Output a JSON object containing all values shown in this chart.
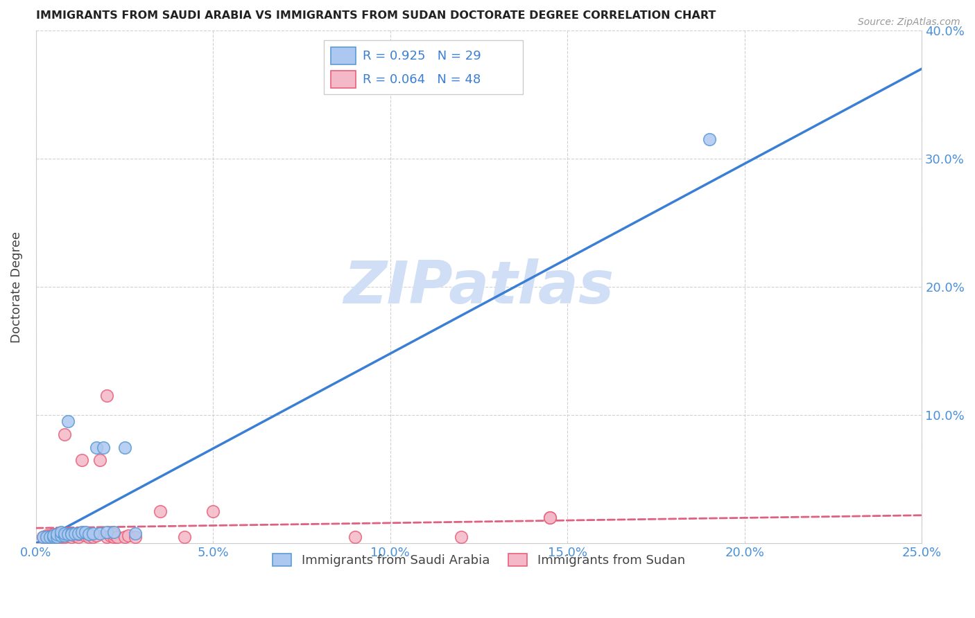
{
  "title": "IMMIGRANTS FROM SAUDI ARABIA VS IMMIGRANTS FROM SUDAN DOCTORATE DEGREE CORRELATION CHART",
  "source": "Source: ZipAtlas.com",
  "tick_color": "#4a90d9",
  "ylabel": "Doctorate Degree",
  "xlim": [
    0.0,
    0.25
  ],
  "ylim": [
    0.0,
    0.4
  ],
  "xtick_labels": [
    "0.0%",
    "5.0%",
    "10.0%",
    "15.0%",
    "20.0%",
    "25.0%"
  ],
  "xtick_vals": [
    0.0,
    0.05,
    0.1,
    0.15,
    0.2,
    0.25
  ],
  "ytick_labels": [
    "10.0%",
    "20.0%",
    "30.0%",
    "40.0%"
  ],
  "ytick_vals": [
    0.1,
    0.2,
    0.3,
    0.4
  ],
  "saudi_face_color": "#adc8f0",
  "saudi_edge_color": "#5b9bd5",
  "sudan_face_color": "#f4b8c8",
  "sudan_edge_color": "#e8607a",
  "saudi_line_color": "#3a7fd5",
  "sudan_line_color": "#e06080",
  "watermark": "ZIPatlas",
  "watermark_color": "#d0dff5",
  "legend_text_color": "#3a7fd5",
  "legend_R_saudi": "R = 0.925",
  "legend_N_saudi": "N = 29",
  "legend_R_sudan": "R = 0.064",
  "legend_N_sudan": "N = 48",
  "saudi_line_x0": 0.0,
  "saudi_line_y0": 0.0,
  "saudi_line_x1": 0.25,
  "saudi_line_y1": 0.37,
  "sudan_line_x0": 0.0,
  "sudan_line_y0": 0.012,
  "sudan_line_x1": 0.25,
  "sudan_line_y1": 0.022,
  "saudi_x": [
    0.002,
    0.003,
    0.004,
    0.005,
    0.005,
    0.006,
    0.006,
    0.007,
    0.007,
    0.008,
    0.008,
    0.009,
    0.009,
    0.01,
    0.01,
    0.011,
    0.012,
    0.013,
    0.014,
    0.015,
    0.016,
    0.017,
    0.018,
    0.019,
    0.02,
    0.022,
    0.025,
    0.028,
    0.19
  ],
  "saudi_y": [
    0.005,
    0.005,
    0.005,
    0.005,
    0.006,
    0.005,
    0.007,
    0.006,
    0.009,
    0.006,
    0.008,
    0.007,
    0.095,
    0.008,
    0.007,
    0.008,
    0.008,
    0.009,
    0.009,
    0.007,
    0.008,
    0.075,
    0.008,
    0.075,
    0.009,
    0.009,
    0.075,
    0.008,
    0.315
  ],
  "sudan_x": [
    0.002,
    0.003,
    0.003,
    0.004,
    0.004,
    0.005,
    0.005,
    0.005,
    0.006,
    0.006,
    0.006,
    0.007,
    0.007,
    0.007,
    0.008,
    0.008,
    0.008,
    0.009,
    0.009,
    0.01,
    0.01,
    0.01,
    0.011,
    0.012,
    0.012,
    0.013,
    0.014,
    0.015,
    0.015,
    0.016,
    0.017,
    0.018,
    0.02,
    0.02,
    0.021,
    0.022,
    0.022,
    0.023,
    0.025,
    0.026,
    0.028,
    0.035,
    0.042,
    0.05,
    0.09,
    0.12,
    0.145,
    0.145
  ],
  "sudan_y": [
    0.005,
    0.005,
    0.006,
    0.005,
    0.006,
    0.005,
    0.006,
    0.007,
    0.005,
    0.006,
    0.007,
    0.005,
    0.006,
    0.008,
    0.005,
    0.006,
    0.085,
    0.006,
    0.007,
    0.005,
    0.007,
    0.008,
    0.006,
    0.005,
    0.007,
    0.065,
    0.006,
    0.005,
    0.007,
    0.005,
    0.006,
    0.065,
    0.005,
    0.115,
    0.006,
    0.005,
    0.007,
    0.005,
    0.005,
    0.006,
    0.005,
    0.025,
    0.005,
    0.025,
    0.005,
    0.005,
    0.02,
    0.02
  ]
}
